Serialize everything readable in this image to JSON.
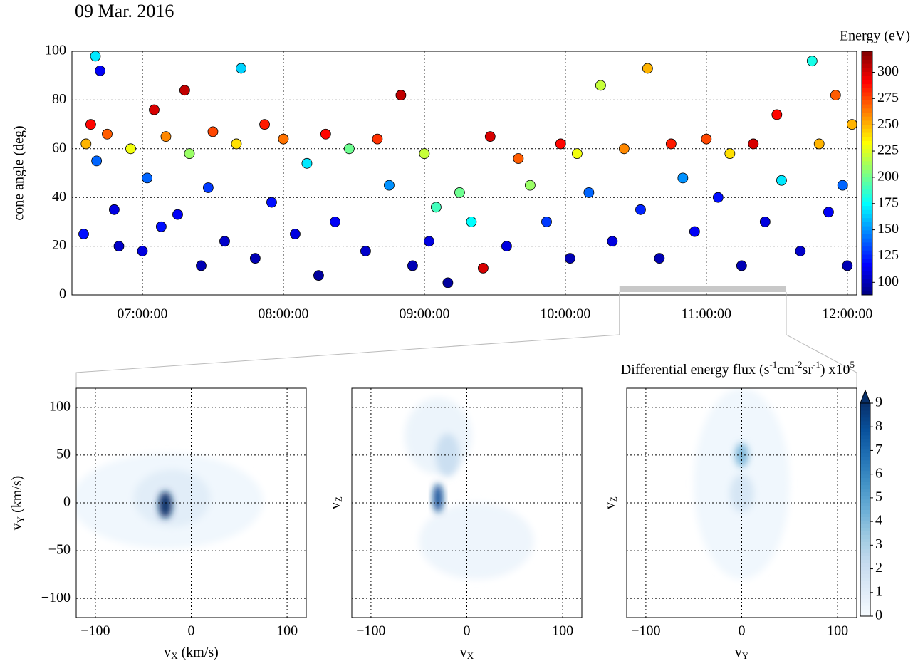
{
  "chart_data": [
    {
      "type": "scatter",
      "title": "09 Mar. 2016",
      "ylabel": "cone angle (deg)",
      "xlim": [
        "06:30:00",
        "12:04:00"
      ],
      "xticks": [
        "07:00:00",
        "08:00:00",
        "09:00:00",
        "10:00:00",
        "11:00:00",
        "12:00:00"
      ],
      "ylim": [
        0,
        100
      ],
      "yticks": [
        0,
        20,
        40,
        60,
        80,
        100
      ],
      "grid": true,
      "highlight": [
        "10:23:00",
        "11:34:00"
      ],
      "colorbar": {
        "label": "Energy (eV)",
        "lim": [
          88,
          320
        ],
        "ticks": [
          100,
          125,
          150,
          175,
          200,
          225,
          250,
          275,
          300
        ],
        "colormap": "jet"
      },
      "x": [
        "06:35:00",
        "06:36:00",
        "06:38:00",
        "06:40:00",
        "06:40:30",
        "06:42:00",
        "06:45:00",
        "06:48:00",
        "06:50:00",
        "06:55:00",
        "07:00:00",
        "07:02:00",
        "07:05:00",
        "07:08:00",
        "07:10:00",
        "07:15:00",
        "07:18:00",
        "07:20:00",
        "07:25:00",
        "07:28:00",
        "07:30:00",
        "07:35:00",
        "07:40:00",
        "07:42:00",
        "07:48:00",
        "07:52:00",
        "07:55:00",
        "08:00:00",
        "08:05:00",
        "08:10:00",
        "08:15:00",
        "08:18:00",
        "08:22:00",
        "08:28:00",
        "08:35:00",
        "08:40:00",
        "08:45:00",
        "08:50:00",
        "08:55:00",
        "09:00:00",
        "09:02:00",
        "09:05:00",
        "09:10:00",
        "09:15:00",
        "09:20:00",
        "09:25:00",
        "09:28:00",
        "09:35:00",
        "09:40:00",
        "09:45:00",
        "09:52:00",
        "09:58:00",
        "10:02:00",
        "10:05:00",
        "10:10:00",
        "10:15:00",
        "10:20:00",
        "10:25:00",
        "10:32:00",
        "10:35:00",
        "10:40:00",
        "10:45:00",
        "10:50:00",
        "10:55:00",
        "11:00:00",
        "11:05:00",
        "11:10:00",
        "11:15:00",
        "11:20:00",
        "11:25:00",
        "11:30:00",
        "11:32:00",
        "11:40:00",
        "11:45:00",
        "11:48:00",
        "11:52:00",
        "11:55:00",
        "11:58:00",
        "12:00:00",
        "12:02:00"
      ],
      "values": [
        25,
        62,
        70,
        98,
        55,
        92,
        66,
        35,
        20,
        60,
        18,
        48,
        76,
        28,
        65,
        33,
        84,
        58,
        12,
        44,
        67,
        22,
        62,
        93,
        15,
        70,
        38,
        64,
        25,
        54,
        8,
        66,
        30,
        60,
        18,
        64,
        45,
        82,
        12,
        58,
        22,
        36,
        5,
        42,
        30,
        11,
        65,
        20,
        56,
        45,
        30,
        62,
        15,
        58,
        42,
        86,
        22,
        60,
        35,
        93,
        15,
        62,
        48,
        26,
        64,
        40,
        58,
        12,
        62,
        30,
        74,
        47,
        18,
        96,
        62,
        34,
        82,
        45,
        12,
        70
      ],
      "energy": [
        120,
        250,
        290,
        170,
        140,
        115,
        270,
        110,
        105,
        230,
        110,
        140,
        300,
        120,
        260,
        115,
        305,
        210,
        100,
        130,
        275,
        105,
        240,
        165,
        100,
        285,
        120,
        265,
        110,
        170,
        95,
        290,
        115,
        200,
        105,
        280,
        150,
        305,
        100,
        220,
        110,
        190,
        95,
        200,
        175,
        300,
        300,
        110,
        270,
        210,
        130,
        290,
        100,
        230,
        140,
        220,
        110,
        260,
        125,
        250,
        100,
        285,
        150,
        115,
        275,
        120,
        240,
        100,
        300,
        110,
        290,
        170,
        105,
        180,
        250,
        115,
        270,
        140,
        100,
        250
      ]
    },
    {
      "type": "heatmap",
      "xlabel": [
        "v",
        "X",
        " (km/s)"
      ],
      "ylabel": [
        "v",
        "Y",
        " (km/s)"
      ],
      "xlim": [
        -120,
        120
      ],
      "ylim": [
        -120,
        120
      ],
      "xticks": [
        {
          "value": -100,
          "label": "−100"
        },
        0,
        100
      ],
      "yticks": [
        {
          "value": -100,
          "label": "−100"
        },
        {
          "value": -50,
          "label": "−50"
        },
        0,
        50,
        100
      ],
      "grid": true,
      "blobs": [
        {
          "x": -25,
          "y": 2,
          "width": 200,
          "height": 100,
          "value": 0.3
        },
        {
          "x": -20,
          "y": 5,
          "width": 80,
          "height": 60,
          "value": 1
        },
        {
          "x": -27,
          "y": -2,
          "width": 14,
          "height": 28,
          "value": 9
        }
      ]
    },
    {
      "type": "heatmap",
      "xlabel": [
        "v",
        "X"
      ],
      "ylabel": [
        "v",
        "Z"
      ],
      "xlim": [
        -120,
        120
      ],
      "ylim": [
        -120,
        120
      ],
      "xticks": [
        {
          "value": -100,
          "label": "−100"
        },
        0,
        100
      ],
      "grid": true,
      "blobs": [
        {
          "x": 10,
          "y": -40,
          "width": 120,
          "height": 80,
          "value": 0.4
        },
        {
          "x": -30,
          "y": 70,
          "width": 70,
          "height": 80,
          "value": 0.5
        },
        {
          "x": -20,
          "y": 50,
          "width": 25,
          "height": 45,
          "value": 2
        },
        {
          "x": -30,
          "y": 5,
          "width": 10,
          "height": 30,
          "value": 8
        }
      ]
    },
    {
      "type": "heatmap",
      "xlabel": [
        "v",
        "Y"
      ],
      "ylabel": [
        "v",
        "Z"
      ],
      "xlim": [
        -120,
        120
      ],
      "ylim": [
        -120,
        120
      ],
      "xticks": [
        {
          "value": -100,
          "label": "−100"
        },
        0,
        100
      ],
      "grid": true,
      "blobs": [
        {
          "x": 0,
          "y": 20,
          "width": 100,
          "height": 200,
          "value": 0.3
        },
        {
          "x": 0,
          "y": 10,
          "width": 25,
          "height": 40,
          "value": 1.5
        },
        {
          "x": 0,
          "y": 50,
          "width": 14,
          "height": 25,
          "value": 4
        }
      ],
      "colorbar": {
        "label": [
          "Differential energy flux (s",
          "-1",
          "cm",
          "-2",
          "sr",
          "-1",
          ") x10",
          "5"
        ],
        "lim": [
          0,
          9
        ],
        "ticks": [
          0,
          1,
          2,
          3,
          4,
          5,
          6,
          7,
          8,
          9
        ],
        "colormap": "Blues"
      }
    }
  ]
}
